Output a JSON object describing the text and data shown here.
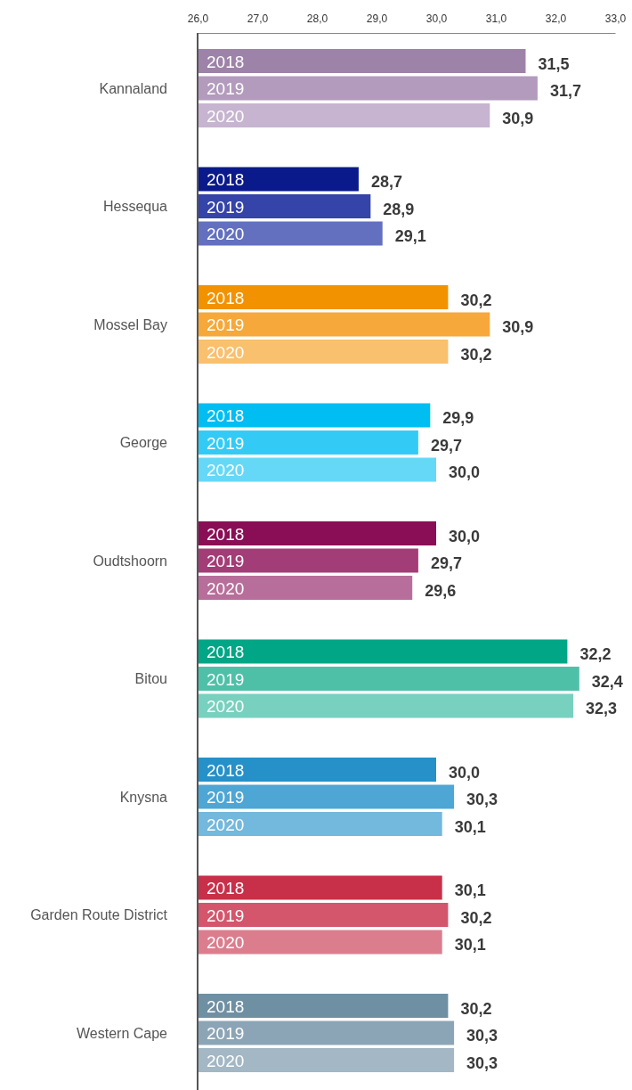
{
  "chart_data": {
    "type": "bar",
    "orientation": "horizontal",
    "categories": [
      "Kannaland",
      "Hessequa",
      "Mossel Bay",
      "George",
      "Oudtshoorn",
      "Bitou",
      "Knysna",
      "Garden Route District",
      "Western Cape"
    ],
    "xlim": [
      26,
      33
    ],
    "xticks": [
      {
        "value": 26,
        "label": "26,0"
      },
      {
        "value": 27,
        "label": "27,0"
      },
      {
        "value": 28,
        "label": "28,0"
      },
      {
        "value": 29,
        "label": "29,0"
      },
      {
        "value": 30,
        "label": "30,0"
      },
      {
        "value": 31,
        "label": "31,0"
      },
      {
        "value": 32,
        "label": "32,0"
      },
      {
        "value": 33,
        "label": "33,0"
      }
    ],
    "series": [
      {
        "name": "2018",
        "colors": [
          "#9e83a9",
          "#0a1a8a",
          "#f39200",
          "#00bdf2",
          "#8a0e55",
          "#00a685",
          "#2690c8",
          "#c8304a",
          "#6f8fa3"
        ],
        "values": [
          31.5,
          28.7,
          30.2,
          29.9,
          30.0,
          32.2,
          30.0,
          30.1,
          30.2
        ],
        "value_labels": [
          "31,5",
          "28,7",
          "30,2",
          "29,9",
          "30,0",
          "32,2",
          "30,0",
          "30,1",
          "30,2"
        ]
      },
      {
        "name": "2019",
        "colors": [
          "#b39bbd",
          "#3444a8",
          "#f6a83a",
          "#33cbf5",
          "#a33d77",
          "#4fc0a8",
          "#4ea6d4",
          "#d3566c",
          "#8ca5b6"
        ],
        "values": [
          31.7,
          28.9,
          30.9,
          29.7,
          29.7,
          32.4,
          30.3,
          30.2,
          30.3
        ],
        "value_labels": [
          "31,7",
          "28,9",
          "30,9",
          "29,7",
          "29,7",
          "32,4",
          "30,3",
          "30,2",
          "30,3"
        ]
      },
      {
        "name": "2020",
        "colors": [
          "#c6b4d0",
          "#6370c0",
          "#f9c06e",
          "#66d8f7",
          "#b86e9a",
          "#78d0be",
          "#73b8dd",
          "#dc7d8e",
          "#a3b7c4"
        ],
        "values": [
          30.9,
          29.1,
          30.2,
          30.0,
          29.6,
          32.3,
          30.1,
          30.1,
          30.3
        ],
        "value_labels": [
          "30,9",
          "29,1",
          "30,2",
          "30,0",
          "29,6",
          "32,3",
          "30,1",
          "30,1",
          "30,3"
        ]
      }
    ]
  }
}
